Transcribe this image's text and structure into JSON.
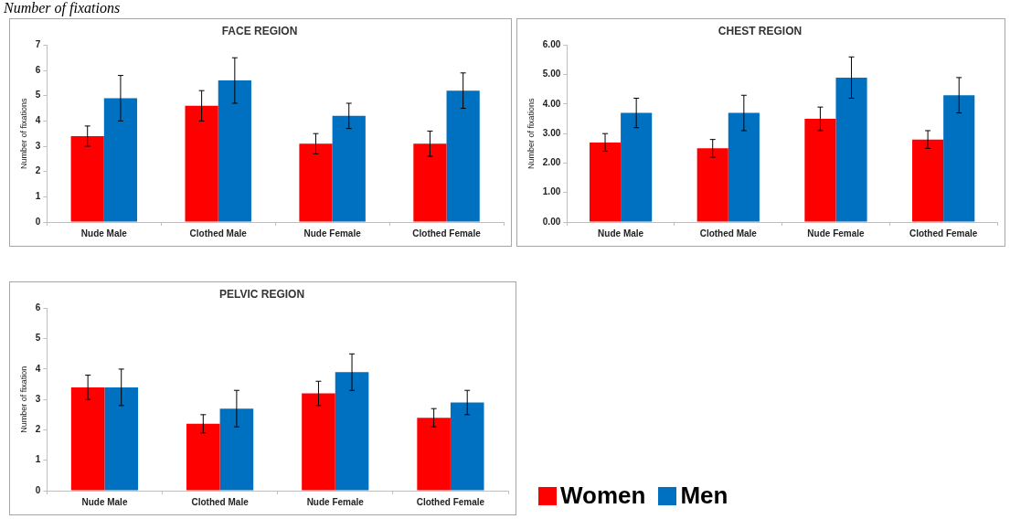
{
  "chart_data": [
    {
      "type": "bar",
      "title": "FACE REGION",
      "ylabel": "Number of fixations",
      "annotations": [
        "Number of fixations"
      ],
      "categories": [
        "Nude Male",
        "Clothed Male",
        "Nude Female",
        "Clothed Female"
      ],
      "series": [
        {
          "color": "#ff0000",
          "values": [
            3.4,
            4.6,
            3.1,
            3.1
          ],
          "errors": [
            0.4,
            0.6,
            0.4,
            0.5
          ]
        },
        {
          "color": "#0070c0",
          "values": [
            4.9,
            5.6,
            4.2,
            5.2
          ],
          "errors": [
            0.9,
            0.9,
            0.5,
            0.7
          ]
        }
      ],
      "ylim": [
        0,
        7
      ],
      "yticks": [
        0,
        1,
        2,
        3,
        4,
        5,
        6,
        7
      ],
      "grid": false
    },
    {
      "type": "bar",
      "title": "CHEST REGION",
      "ylabel": "Number of fixations",
      "categories": [
        "Nude Male",
        "Clothed Male",
        "Nude Female",
        "Clothed Female"
      ],
      "series": [
        {
          "color": "#ff0000",
          "values": [
            2.7,
            2.5,
            3.5,
            2.8
          ],
          "errors": [
            0.3,
            0.3,
            0.4,
            0.3
          ]
        },
        {
          "color": "#0070c0",
          "values": [
            3.7,
            3.7,
            4.9,
            4.3
          ],
          "errors": [
            0.5,
            0.6,
            0.7,
            0.6
          ]
        }
      ],
      "ylim": [
        0,
        6
      ],
      "yticks": [
        {
          "value": 0,
          "label": "0.00"
        },
        {
          "value": 1,
          "label": "1.00"
        },
        {
          "value": 2,
          "label": "2.00"
        },
        {
          "value": 3,
          "label": "3.00"
        },
        {
          "value": 4,
          "label": "4.00"
        },
        {
          "value": 5,
          "label": "5.00"
        },
        {
          "value": 6,
          "label": "6.00"
        }
      ],
      "grid": false
    },
    {
      "type": "bar",
      "title": "PELVIC REGION",
      "ylabel": "Number of fixation",
      "categories": [
        "Nude Male",
        "Clothed Male",
        "Nude Female",
        "Clothed Female"
      ],
      "series": [
        {
          "name": "Women",
          "color": "#ff0000",
          "values": [
            3.4,
            2.2,
            3.2,
            2.4
          ],
          "errors": [
            0.4,
            0.3,
            0.4,
            0.3
          ]
        },
        {
          "name": "Men",
          "color": "#0070c0",
          "values": [
            3.4,
            2.7,
            3.9,
            2.9
          ],
          "errors": [
            0.6,
            0.6,
            0.6,
            0.4
          ]
        }
      ],
      "ylim": [
        0,
        6
      ],
      "yticks": [
        0,
        1,
        2,
        3,
        4,
        5,
        6
      ],
      "grid": false,
      "legend": "right"
    }
  ]
}
